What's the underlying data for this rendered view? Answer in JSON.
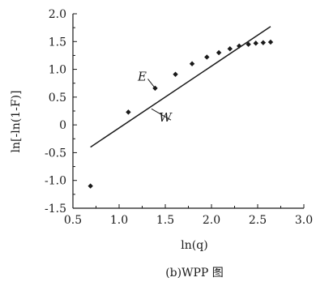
{
  "chart_data": {
    "type": "scatter",
    "title": "",
    "caption": "(b)WPP 图",
    "xlabel": "ln(q)",
    "ylabel": "ln[-ln(1-F)]",
    "xlim": [
      0.5,
      3.0
    ],
    "ylim": [
      -1.5,
      2.0
    ],
    "x_ticks": [
      0.5,
      1.0,
      1.5,
      2.0,
      2.5,
      3.0
    ],
    "x_tick_labels": [
      "0.5",
      "1.0",
      "1.5",
      "2.0",
      "2.5",
      "3.0"
    ],
    "y_ticks": [
      -1.5,
      -1.0,
      -0.5,
      0,
      0.5,
      1.0,
      1.5,
      2.0
    ],
    "y_tick_labels": [
      "-1.5",
      "-1.0",
      "-0.5",
      "0",
      "0.5",
      "1.0",
      "1.5",
      "2.0"
    ],
    "grid": false,
    "series": [
      {
        "marker": "diamond",
        "label": "E",
        "x": [
          0.69,
          1.1,
          1.39,
          1.61,
          1.79,
          1.95,
          2.08,
          2.2,
          2.3,
          2.4,
          2.48,
          2.56,
          2.64
        ],
        "y": [
          -1.1,
          0.23,
          0.66,
          0.91,
          1.1,
          1.22,
          1.3,
          1.37,
          1.42,
          1.45,
          1.47,
          1.48,
          1.49
        ]
      },
      {
        "type": "line",
        "label": "W",
        "x": [
          0.69,
          2.64
        ],
        "y": [
          -0.4,
          1.77
        ]
      }
    ],
    "annotations": [
      {
        "text": "E",
        "x": 1.25,
        "y": 0.87,
        "arrow_to": [
          1.39,
          0.66
        ]
      },
      {
        "text": "W",
        "x": 1.5,
        "y": 0.13,
        "arrow_to": [
          1.35,
          0.29
        ]
      }
    ]
  }
}
